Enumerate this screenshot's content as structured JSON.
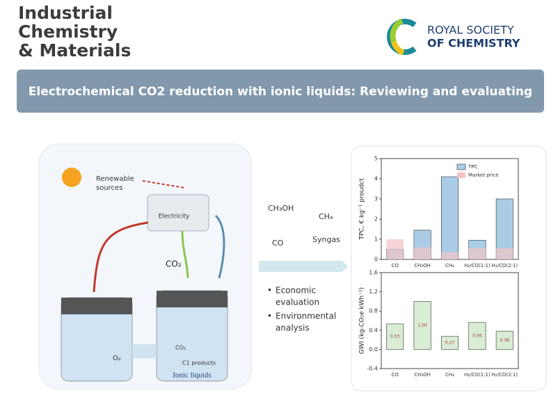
{
  "header": {
    "journal": [
      "Industrial",
      "Chemistry",
      "& Materials"
    ],
    "publisher": [
      "ROYAL SOCIETY",
      "OF CHEMISTRY"
    ]
  },
  "banner": {
    "title": "Electrochemical CO2 reduction with ionic liquids: Reviewing and evaluating"
  },
  "illustration": {
    "renewable": [
      "Renewable",
      "sources"
    ],
    "electricity": "Electricity",
    "co2_top": "CO₂",
    "o2": "O₂",
    "co2_cell": "CO₂",
    "c1_products": "C1 products",
    "ionic_liquids": "Ionic liquids",
    "products": [
      "CH₃OH",
      "CH₄",
      "CO",
      "Syngas"
    ],
    "bullets": [
      [
        "Economic",
        "evaluation"
      ],
      [
        "Environmental",
        "analysis"
      ]
    ]
  },
  "charts": [
    {
      "type": "bar",
      "y_label": "TPC, € kg⁻¹ proudct",
      "categories": [
        "CO",
        "CH₃OH",
        "CH₄",
        "H₂/CO(1:1)",
        "H₂/CO(2:1)"
      ],
      "series": [
        {
          "name": "TPC",
          "color": "#a9cde6",
          "values": [
            0.5,
            1.45,
            4.1,
            0.95,
            3.0
          ]
        },
        {
          "name": "Market price",
          "color": "#f2c4c8",
          "values": [
            1.0,
            0.6,
            0.35,
            0.55,
            0.55
          ]
        }
      ],
      "ylim": [
        0,
        5
      ],
      "yticks": [
        0,
        1,
        2,
        3,
        4,
        5
      ]
    },
    {
      "type": "bar",
      "y_label": "GWI (kg-CO₂e kWh⁻¹)",
      "categories": [
        "CO",
        "CH₃OH",
        "CH₄",
        "H₂/CO(1:1)",
        "H₂/CO(2:1)"
      ],
      "series": [
        {
          "color": "#d8edd3",
          "values": [
            0.53,
            1.0,
            0.27,
            0.56,
            0.38
          ],
          "value_labels": [
            "0.53",
            "1.00",
            "0.27",
            "0.56",
            "0.38"
          ]
        }
      ],
      "ylim": [
        -0.4,
        1.6
      ],
      "yticks": [
        -0.4,
        {
          "value": 0,
          "label": "0.0"
        },
        0.4,
        0.8,
        1.2,
        1.6
      ]
    }
  ]
}
